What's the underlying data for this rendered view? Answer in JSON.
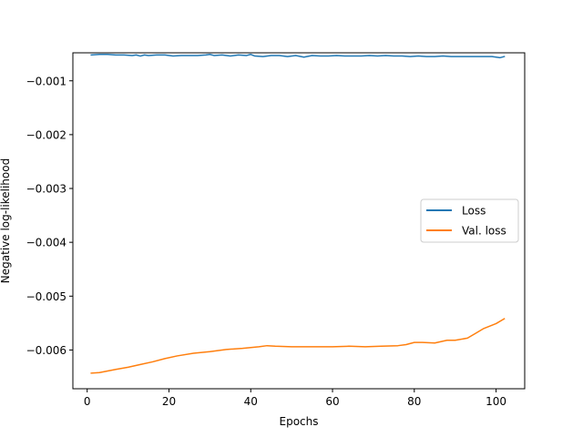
{
  "chart_data": {
    "type": "line",
    "title": "",
    "xlabel": "Epochs",
    "ylabel": "Negative log-likelihood",
    "xlim": [
      -3.5,
      107
    ],
    "ylim": [
      -0.00672,
      -0.00048
    ],
    "xticks": [
      0,
      20,
      40,
      60,
      80,
      100
    ],
    "yticks": [
      -0.001,
      -0.002,
      -0.003,
      -0.004,
      -0.005,
      -0.006
    ],
    "xtick_labels": [
      "0",
      "20",
      "40",
      "60",
      "80",
      "100"
    ],
    "ytick_labels": [
      "−0.001",
      "−0.002",
      "−0.003",
      "−0.004",
      "−0.005",
      "−0.006"
    ],
    "grid": false,
    "legend_position": "center-right",
    "series": [
      {
        "name": "Loss",
        "color": "#1f77b4",
        "x": [
          1,
          3,
          5,
          7,
          9,
          11,
          12,
          13,
          14,
          15,
          17,
          19,
          21,
          23,
          25,
          27,
          29,
          30,
          31,
          33,
          35,
          37,
          39,
          40,
          41,
          43,
          45,
          47,
          49,
          51,
          53,
          55,
          57,
          59,
          61,
          63,
          65,
          67,
          69,
          71,
          73,
          75,
          77,
          79,
          81,
          83,
          85,
          87,
          89,
          91,
          93,
          95,
          97,
          99,
          101,
          102
        ],
        "y": [
          -0.00052,
          -0.00051,
          -0.00051,
          -0.00052,
          -0.00052,
          -0.00053,
          -0.00052,
          -0.00054,
          -0.00052,
          -0.00053,
          -0.00052,
          -0.00052,
          -0.00054,
          -0.00053,
          -0.00053,
          -0.00053,
          -0.00052,
          -0.00051,
          -0.00053,
          -0.00052,
          -0.00054,
          -0.00052,
          -0.00053,
          -0.00051,
          -0.00054,
          -0.00055,
          -0.00053,
          -0.00053,
          -0.00055,
          -0.00053,
          -0.00056,
          -0.00053,
          -0.00054,
          -0.00054,
          -0.00053,
          -0.00054,
          -0.00054,
          -0.00054,
          -0.00053,
          -0.00054,
          -0.00053,
          -0.00054,
          -0.00054,
          -0.00055,
          -0.00054,
          -0.00055,
          -0.00055,
          -0.00054,
          -0.00055,
          -0.00055,
          -0.00055,
          -0.00055,
          -0.00055,
          -0.00055,
          -0.00057,
          -0.00055
        ]
      },
      {
        "name": "Val. loss",
        "color": "#ff7f0e",
        "x": [
          1,
          3,
          5,
          7,
          10,
          13,
          16,
          19,
          22,
          26,
          30,
          34,
          38,
          42,
          44,
          46,
          50,
          55,
          60,
          64,
          68,
          72,
          76,
          78,
          80,
          82,
          85,
          88,
          90,
          93,
          95,
          97,
          100,
          102
        ],
        "y": [
          -0.00643,
          -0.00642,
          -0.00639,
          -0.00636,
          -0.00632,
          -0.00627,
          -0.00622,
          -0.00616,
          -0.00611,
          -0.00606,
          -0.00603,
          -0.00599,
          -0.00597,
          -0.00594,
          -0.00592,
          -0.00593,
          -0.00594,
          -0.00594,
          -0.00594,
          -0.00593,
          -0.00594,
          -0.00593,
          -0.00592,
          -0.0059,
          -0.00586,
          -0.00586,
          -0.00587,
          -0.00582,
          -0.00582,
          -0.00578,
          -0.00569,
          -0.0056,
          -0.00551,
          -0.00542
        ]
      }
    ]
  }
}
